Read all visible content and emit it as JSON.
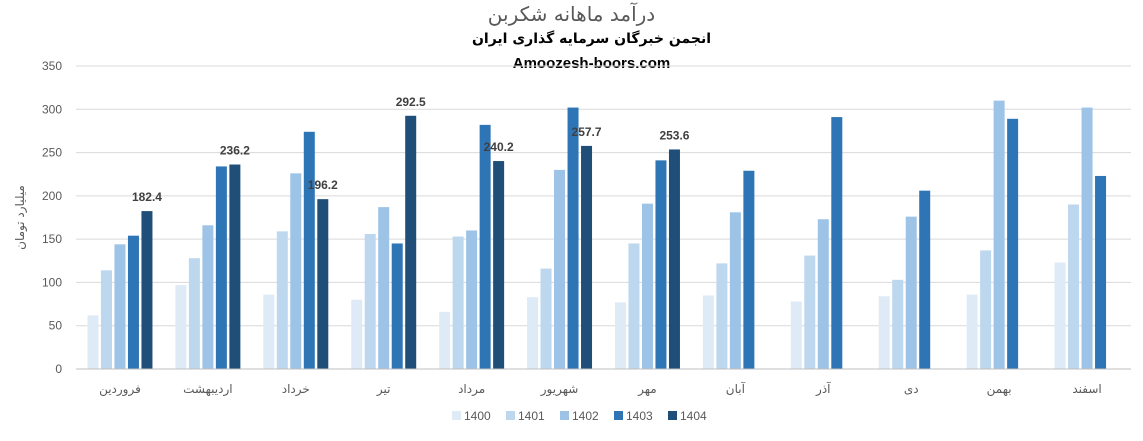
{
  "chart_data": {
    "type": "bar",
    "title": "درآمد ماهانه شکربن",
    "subtitle": "انجمن خبرگان سرمایه گذاری ایران",
    "source": "Amoozesh-boors.com",
    "ylabel": "میلیارد تومان",
    "xlabel": "",
    "ylim": [
      0,
      350
    ],
    "yticks": [
      0,
      50,
      100,
      150,
      200,
      250,
      300,
      350
    ],
    "grid": true,
    "legend_position": "bottom",
    "categories": [
      "فروردین",
      "اردیبهشت",
      "خرداد",
      "تیر",
      "مرداد",
      "شهریور",
      "مهر",
      "آبان",
      "آذر",
      "دی",
      "بهمن",
      "اسفند"
    ],
    "series": [
      {
        "name": "1400",
        "color": "#deebf7",
        "values": [
          62,
          97,
          86,
          80,
          66,
          83,
          77,
          85,
          78,
          84,
          86,
          123
        ]
      },
      {
        "name": "1401",
        "color": "#bdd7ee",
        "values": [
          114,
          128,
          159,
          156,
          153,
          116,
          145,
          122,
          131,
          103,
          137,
          190
        ]
      },
      {
        "name": "1402",
        "color": "#9dc3e6",
        "values": [
          144,
          166,
          226,
          187,
          160,
          230,
          191,
          181,
          173,
          176,
          310,
          302
        ]
      },
      {
        "name": "1403",
        "color": "#2e75b6",
        "values": [
          154,
          234,
          274,
          145,
          282,
          302,
          241,
          229,
          291,
          206,
          289,
          223
        ]
      },
      {
        "name": "1404",
        "color": "#1f4e79",
        "values": [
          182.4,
          236.2,
          196.2,
          292.5,
          240.2,
          257.7,
          253.6,
          null,
          null,
          null,
          null,
          null
        ]
      }
    ],
    "data_labels": {
      "series": "1404",
      "values": [
        "182.4",
        "236.2",
        "196.2",
        "292.5",
        "240.2",
        "257.7",
        "253.6"
      ]
    }
  }
}
